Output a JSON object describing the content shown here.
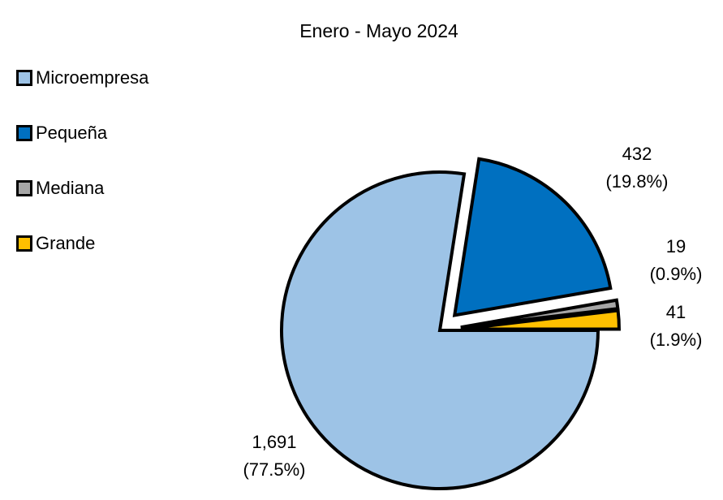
{
  "chart_data": {
    "type": "pie",
    "title": "Enero - Mayo 2024",
    "legend_position": "left",
    "categories": [
      "Microempresa",
      "Pequeña",
      "Mediana",
      "Grande"
    ],
    "values": [
      1691,
      432,
      19,
      41
    ],
    "percent_labels": [
      "(77.5%)",
      "(19.8%)",
      "(0.9%)",
      "(1.9%)"
    ],
    "value_labels": [
      "1,691",
      "432",
      "19",
      "41"
    ],
    "colors": [
      "#9DC3E6",
      "#0070C0",
      "#A6A6A6",
      "#FFC000"
    ],
    "exploded": true
  }
}
